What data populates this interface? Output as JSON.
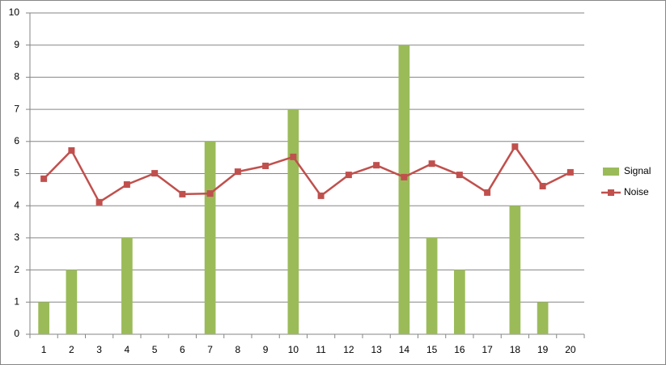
{
  "chart_data": {
    "type": "combo",
    "categories": [
      "1",
      "2",
      "3",
      "4",
      "5",
      "6",
      "7",
      "8",
      "9",
      "10",
      "11",
      "12",
      "13",
      "14",
      "15",
      "16",
      "17",
      "18",
      "19",
      "20"
    ],
    "series": [
      {
        "name": "Signal",
        "type": "bar",
        "color": "#9bbb59",
        "values": [
          1,
          2,
          0,
          3,
          0,
          0,
          6,
          0,
          0,
          7,
          0,
          0,
          0,
          9,
          3,
          2,
          0,
          4,
          1,
          0
        ]
      },
      {
        "name": "Noise",
        "type": "line",
        "color": "#c0504d",
        "values": [
          4.84,
          5.72,
          4.11,
          4.66,
          5.01,
          4.36,
          4.38,
          5.06,
          5.24,
          5.52,
          4.31,
          4.96,
          5.26,
          4.89,
          5.31,
          4.96,
          4.41,
          5.84,
          4.61,
          5.04
        ]
      }
    ],
    "ylim": [
      0,
      10
    ],
    "yticks": [
      0,
      1,
      2,
      3,
      4,
      5,
      6,
      7,
      8,
      9,
      10
    ],
    "grid": true,
    "legend": "right"
  }
}
